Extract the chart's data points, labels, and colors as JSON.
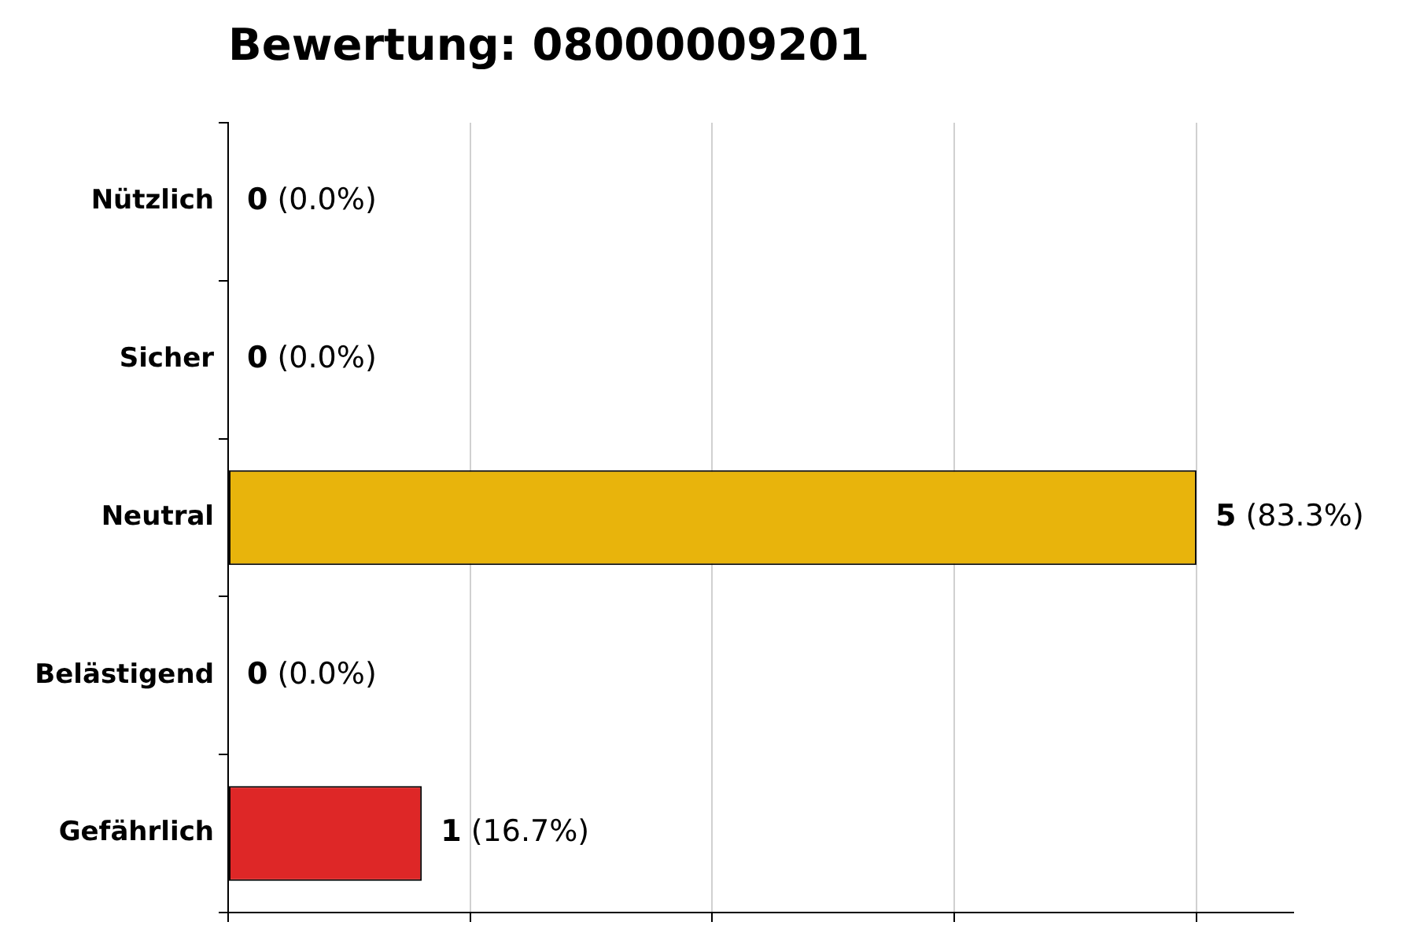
{
  "chart_data": {
    "type": "bar",
    "orientation": "horizontal",
    "title": "Bewertung: 08000009201",
    "categories": [
      "Nützlich",
      "Sicher",
      "Neutral",
      "Belästigend",
      "Gefährlich"
    ],
    "values": [
      0,
      0,
      5,
      0,
      1
    ],
    "colors": [
      "#2e9e44",
      "#4aa84a",
      "#e8b40c",
      "#f07f1a",
      "#de2727"
    ],
    "value_labels": [
      "0 (0.0%)",
      "0 (0.0%)",
      "5 (83.3%)",
      "0 (0.0%)",
      "1 (16.7%)"
    ],
    "xlim": [
      0,
      5.5
    ],
    "xticks": [
      {
        "value": 0,
        "label": null
      },
      {
        "value": 1.25,
        "label": null
      },
      {
        "value": 2.5,
        "label": null
      },
      {
        "value": 3.75,
        "label": null
      },
      {
        "value": 5,
        "label": null
      }
    ],
    "grid": "x",
    "legend": false,
    "tick_labels": "y"
  }
}
